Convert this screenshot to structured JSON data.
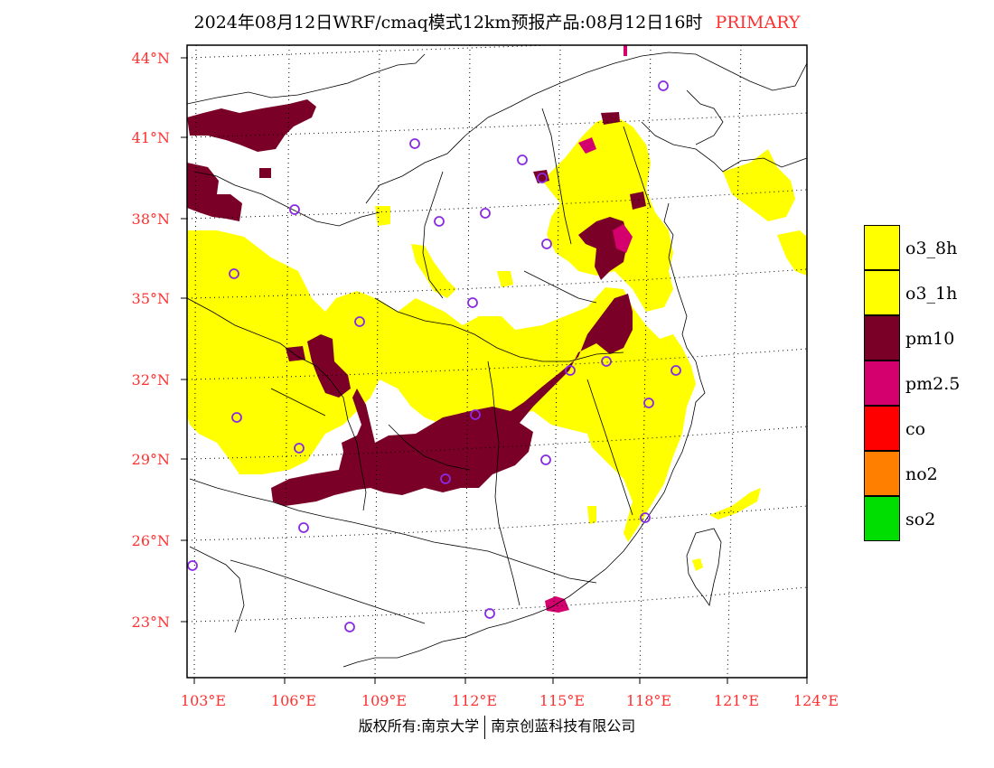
{
  "title": {
    "text": "2024年08月12日WRF/cmaq模式12km预报产品:08月12日16时",
    "tag": "PRIMARY"
  },
  "lat_labels": [
    "44°N",
    "41°N",
    "38°N",
    "35°N",
    "32°N",
    "29°N",
    "26°N",
    "23°N"
  ],
  "lon_labels": [
    "103°E",
    "106°E",
    "109°E",
    "112°E",
    "115°E",
    "118°E",
    "121°E",
    "124°E"
  ],
  "legend": [
    {
      "label": "o3_8h",
      "color": "#ffff00"
    },
    {
      "label": "o3_1h",
      "color": "#ffff00"
    },
    {
      "label": "pm10",
      "color": "#7a0028"
    },
    {
      "label": "pm2.5",
      "color": "#d4006e"
    },
    {
      "label": "co",
      "color": "#ff0000"
    },
    {
      "label": "no2",
      "color": "#ff7f00"
    },
    {
      "label": "so2",
      "color": "#00dd00"
    }
  ],
  "footer": {
    "left": "版权所有:南京大学",
    "right": "南京创蓝科技有限公司"
  },
  "station_marker_color": "#8a2be2"
}
